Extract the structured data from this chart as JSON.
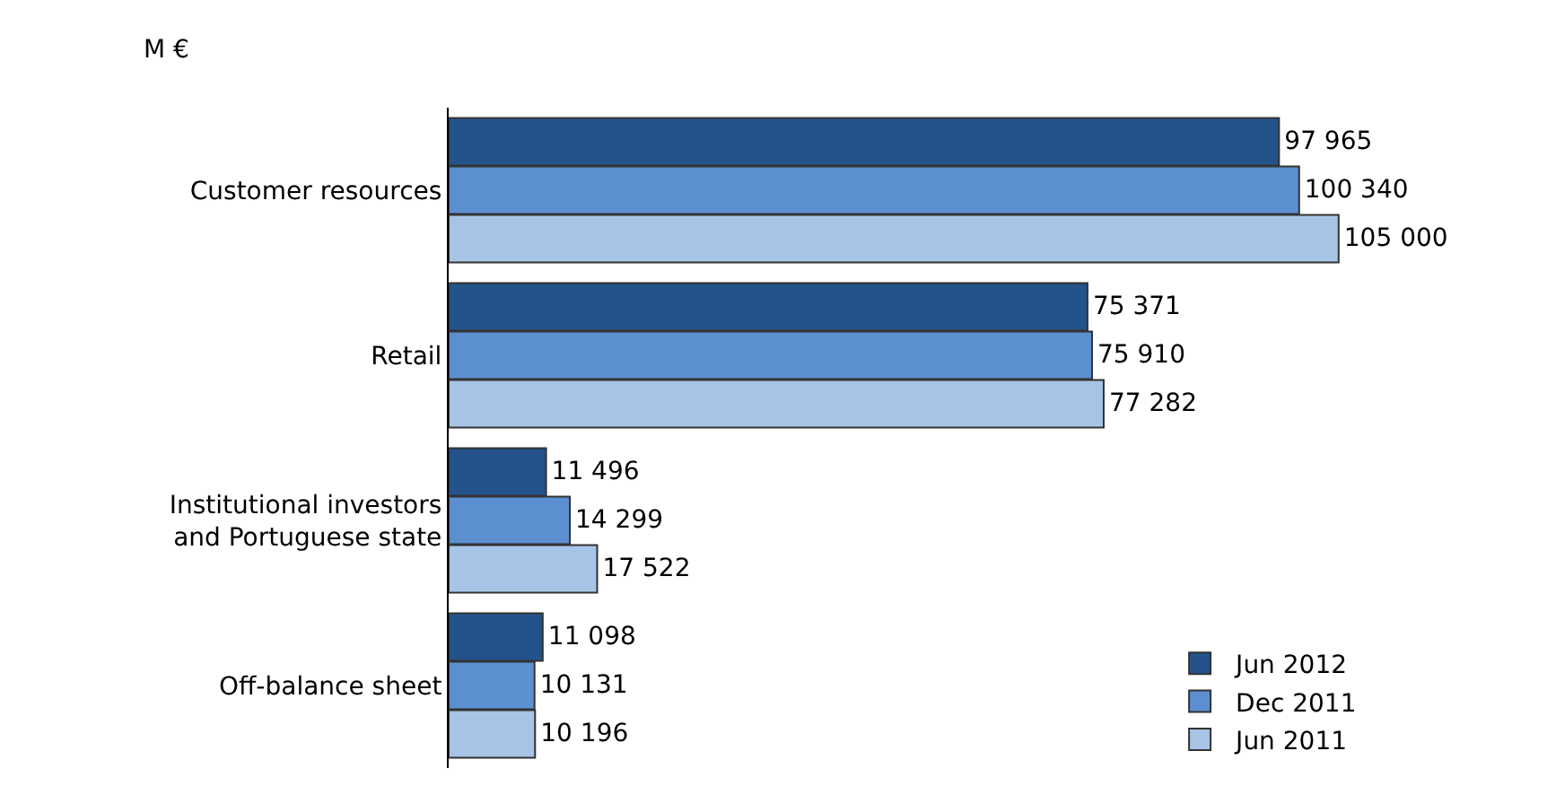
{
  "chart_data": {
    "type": "bar",
    "orientation": "horizontal",
    "annotations": [
      "M €"
    ],
    "categories": [
      "Customer resources",
      "Retail",
      "Institutional investors and Portuguese state",
      "Off-balance sheet"
    ],
    "series": [
      {
        "name": "Jun 2012",
        "color": "#24528a",
        "values": [
          97965,
          75371,
          11496,
          11098
        ],
        "value_labels": [
          "97 965",
          "75 371",
          "11 496",
          "11 098"
        ]
      },
      {
        "name": "Dec 2011",
        "color": "#5b8fd0",
        "values": [
          100340,
          75910,
          14299,
          10131
        ],
        "value_labels": [
          "100 340",
          "75 910",
          "14 299",
          "10 131"
        ]
      },
      {
        "name": "Jun 2011",
        "color": "#a6c4e6",
        "values": [
          105000,
          77282,
          17522,
          10196
        ],
        "value_labels": [
          "105 000",
          "77 282",
          "17 522",
          "10 196"
        ]
      }
    ],
    "legend": "bottom right"
  }
}
